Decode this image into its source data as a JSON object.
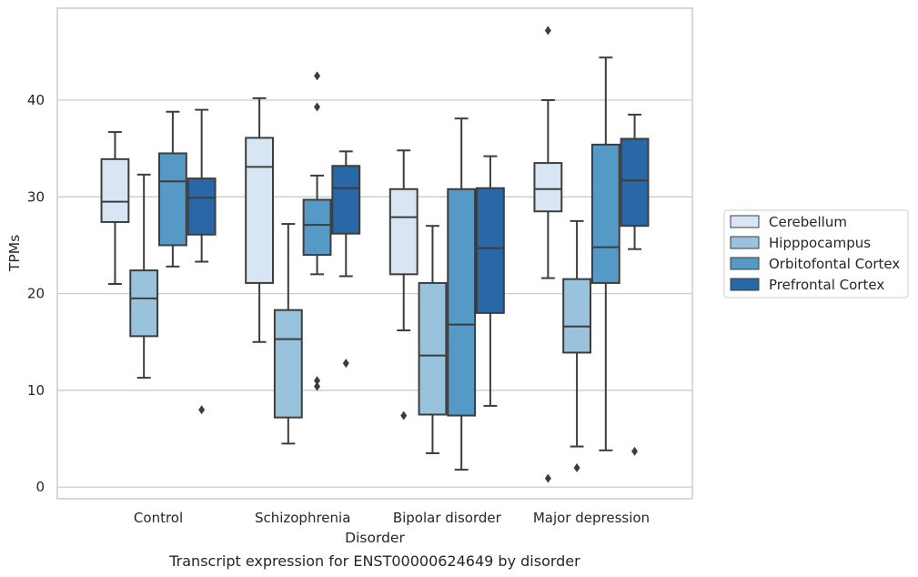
{
  "chart_data": {
    "type": "box",
    "caption": "Transcript expression for ENST00000624649 by disorder",
    "xlabel": "Disorder",
    "ylabel": "TPMs",
    "ylim": [
      -1.2,
      49.5
    ],
    "yticks": [
      0,
      10,
      20,
      30,
      40
    ],
    "grid": "y",
    "legend_position": "center-right, outside",
    "categories": [
      "Control",
      "Schizophrenia",
      "Bipolar disorder",
      "Major depression"
    ],
    "series": [
      {
        "name": "Cerebellum",
        "color": "#d8e6f3",
        "boxes": [
          {
            "whisker_low": 21.0,
            "q1": 27.4,
            "median": 29.5,
            "q3": 33.9,
            "whisker_high": 36.7,
            "outliers": []
          },
          {
            "whisker_low": 15.0,
            "q1": 21.1,
            "median": 33.1,
            "q3": 36.1,
            "whisker_high": 40.2,
            "outliers": []
          },
          {
            "whisker_low": 16.2,
            "q1": 22.0,
            "median": 27.9,
            "q3": 30.8,
            "whisker_high": 34.8,
            "outliers": [
              7.4
            ]
          },
          {
            "whisker_low": 21.6,
            "q1": 28.5,
            "median": 30.8,
            "q3": 33.5,
            "whisker_high": 40.0,
            "outliers": [
              0.9,
              47.2
            ]
          }
        ]
      },
      {
        "name": "Hipppocampus",
        "color": "#99c2dd",
        "boxes": [
          {
            "whisker_low": 11.3,
            "q1": 15.6,
            "median": 19.5,
            "q3": 22.4,
            "whisker_high": 32.3,
            "outliers": []
          },
          {
            "whisker_low": 4.5,
            "q1": 7.2,
            "median": 15.3,
            "q3": 18.3,
            "whisker_high": 27.2,
            "outliers": []
          },
          {
            "whisker_low": 3.5,
            "q1": 7.5,
            "median": 13.6,
            "q3": 21.1,
            "whisker_high": 27.0,
            "outliers": []
          },
          {
            "whisker_low": 4.2,
            "q1": 13.9,
            "median": 16.6,
            "q3": 21.5,
            "whisker_high": 27.5,
            "outliers": [
              2.0
            ]
          }
        ]
      },
      {
        "name": "Orbitofontal Cortex",
        "color": "#5599c7",
        "boxes": [
          {
            "whisker_low": 22.8,
            "q1": 25.0,
            "median": 31.6,
            "q3": 34.5,
            "whisker_high": 38.8,
            "outliers": []
          },
          {
            "whisker_low": 22.0,
            "q1": 24.0,
            "median": 27.1,
            "q3": 29.7,
            "whisker_high": 32.2,
            "outliers": [
              10.4,
              11.0,
              39.3,
              42.5
            ]
          },
          {
            "whisker_low": 1.8,
            "q1": 7.4,
            "median": 16.8,
            "q3": 30.8,
            "whisker_high": 38.1,
            "outliers": []
          },
          {
            "whisker_low": 3.8,
            "q1": 21.1,
            "median": 24.8,
            "q3": 35.4,
            "whisker_high": 44.4,
            "outliers": []
          }
        ]
      },
      {
        "name": "Prefrontal Cortex",
        "color": "#2a67a6",
        "boxes": [
          {
            "whisker_low": 23.3,
            "q1": 26.1,
            "median": 29.9,
            "q3": 31.9,
            "whisker_high": 39.0,
            "outliers": [
              8.0
            ]
          },
          {
            "whisker_low": 21.8,
            "q1": 26.2,
            "median": 30.9,
            "q3": 33.2,
            "whisker_high": 34.7,
            "outliers": [
              12.8
            ]
          },
          {
            "whisker_low": 8.4,
            "q1": 18.0,
            "median": 24.7,
            "q3": 30.9,
            "whisker_high": 34.2,
            "outliers": []
          },
          {
            "whisker_low": 24.6,
            "q1": 27.0,
            "median": 31.7,
            "q3": 36.0,
            "whisker_high": 38.5,
            "outliers": [
              3.7
            ]
          }
        ]
      }
    ]
  }
}
